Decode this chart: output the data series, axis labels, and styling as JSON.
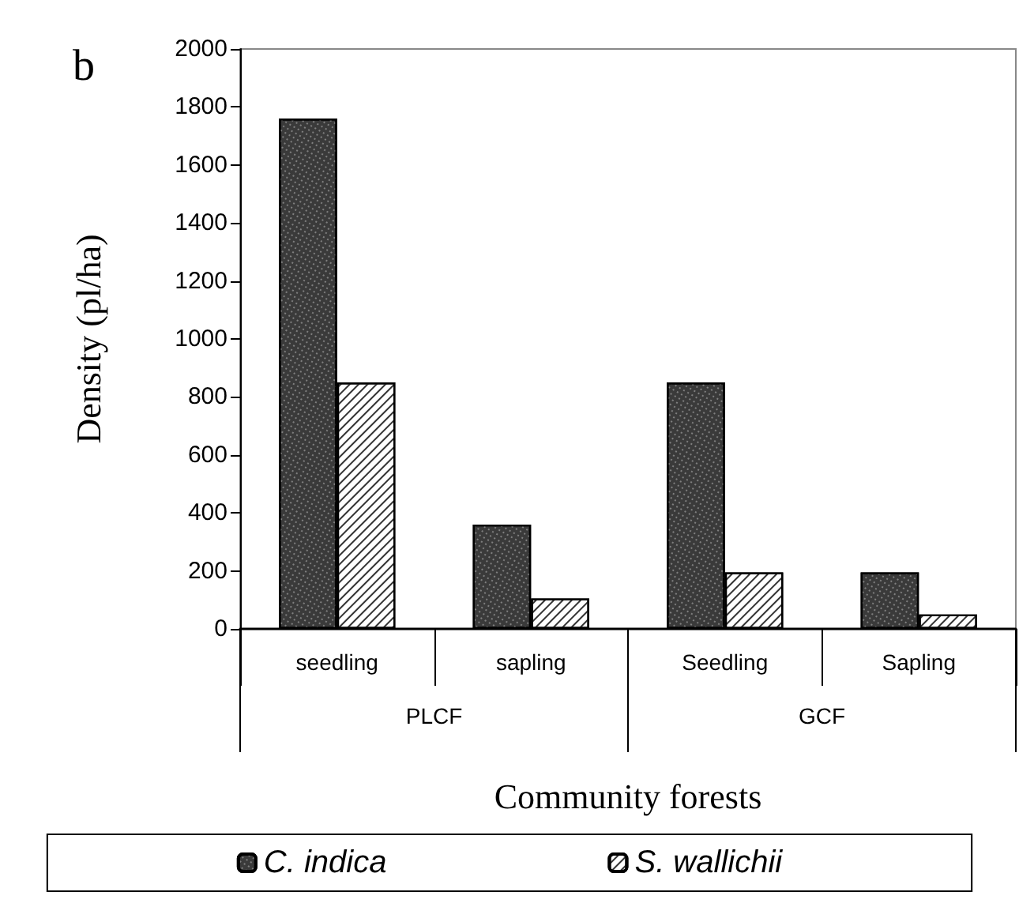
{
  "chart_data": {
    "type": "bar",
    "xlabel": "Community forests",
    "ylabel": "Density (pl/ha)",
    "categories": [
      "seedling",
      "sapling",
      "Seedling",
      "Sapling"
    ],
    "series": [
      {
        "name": "C. indica",
        "color": "#3a3a3a",
        "values": [
          1760,
          360,
          850,
          195
        ]
      },
      {
        "name": "S. wallichii",
        "color": "#ffffff",
        "values": [
          850,
          105,
          195,
          50
        ]
      }
    ],
    "ylim": [
      0,
      2000
    ],
    "yticks": [
      0,
      200,
      400,
      600,
      800,
      1000,
      1200,
      1400,
      1600,
      1800,
      2000
    ],
    "legend": "bottom",
    "annotations": [
      "b",
      "PLCF",
      "GCF"
    ]
  }
}
